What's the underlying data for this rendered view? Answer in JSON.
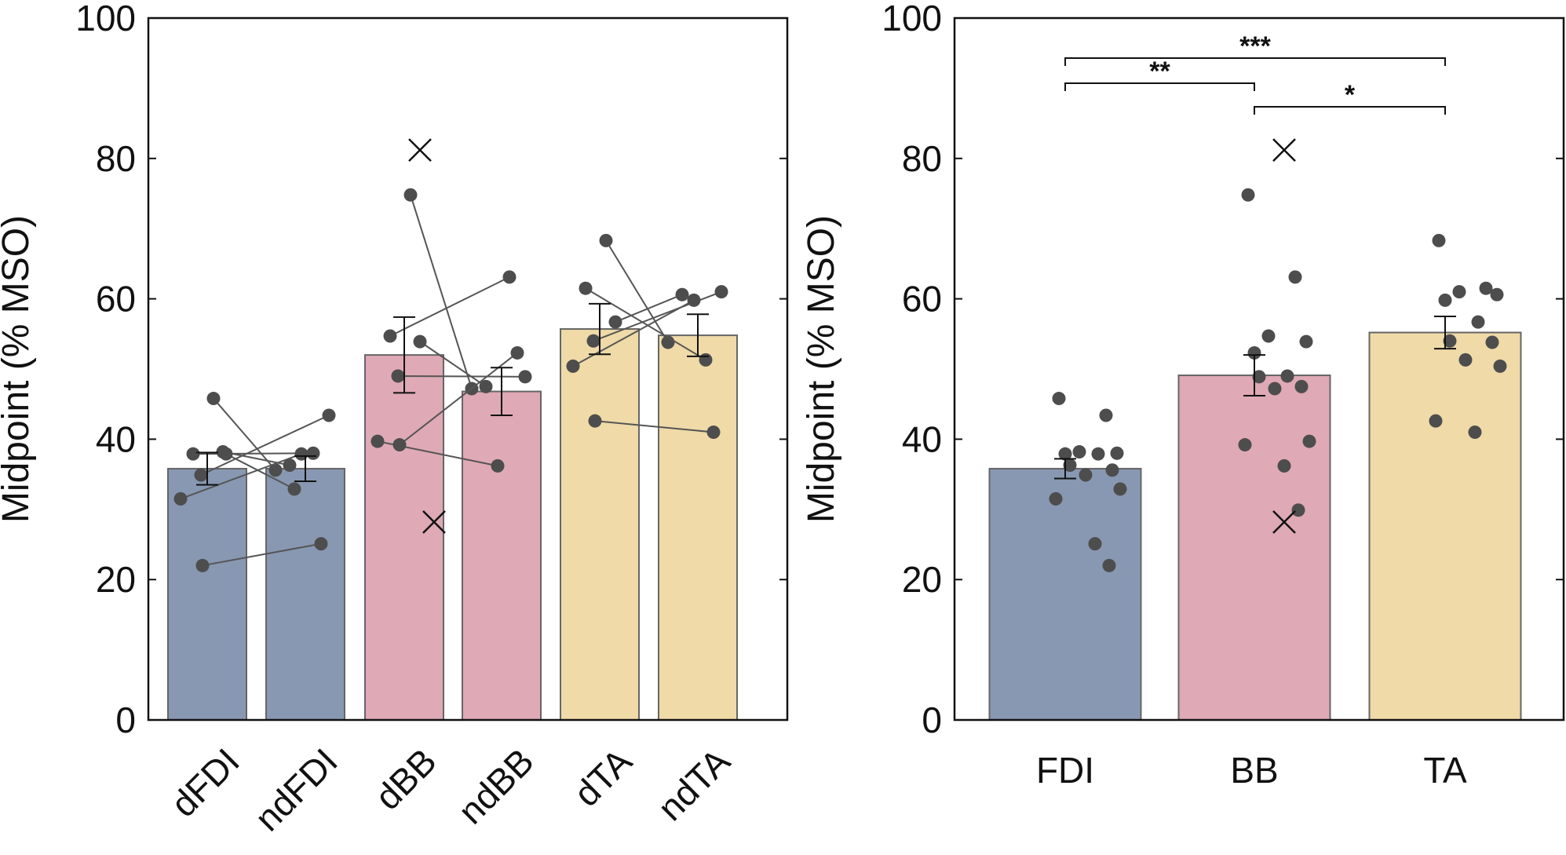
{
  "chart_data": [
    {
      "type": "bar",
      "title": "",
      "xlabel": "",
      "ylabel": "Midpoint (% MSO)",
      "ylim": [
        0,
        100
      ],
      "yticks": [
        0,
        20,
        40,
        60,
        80,
        100
      ],
      "categories": [
        "dFDI",
        "ndFDI",
        "dBB",
        "ndBB",
        "dTA",
        "ndTA"
      ],
      "values": [
        35.8,
        35.8,
        52.0,
        46.8,
        55.7,
        54.8
      ],
      "error": [
        2.3,
        1.8,
        5.4,
        3.4,
        3.6,
        3.0
      ],
      "colors": [
        "#8898b2",
        "#8898b2",
        "#dfa9b6",
        "#dfa9b6",
        "#efdaa8",
        "#efdaa8"
      ],
      "point_pairs": [
        {
          "from": 0,
          "to": 1,
          "pairs": [
            [
              45.8,
              35.6
            ],
            [
              37.9,
              38.0
            ],
            [
              38.2,
              36.3
            ],
            [
              34.9,
              43.4
            ],
            [
              31.5,
              37.9
            ],
            [
              22.0,
              25.1
            ],
            [
              37.9,
              32.9
            ]
          ]
        },
        {
          "from": 2,
          "to": 3,
          "pairs": [
            [
              74.8,
              47.2
            ],
            [
              54.7,
              63.1
            ],
            [
              53.9,
              47.5
            ],
            [
              49.0,
              48.9
            ],
            [
              39.7,
              36.2
            ],
            [
              39.2,
              52.3
            ]
          ]
        },
        {
          "from": 4,
          "to": 5,
          "pairs": [
            [
              68.3,
              53.8
            ],
            [
              61.5,
              51.3
            ],
            [
              56.7,
              60.6
            ],
            [
              54.0,
              61.0
            ],
            [
              50.4,
              59.8
            ],
            [
              42.6,
              41.0
            ]
          ]
        }
      ],
      "outliers": [
        {
          "category": "dBB",
          "value": 81.2
        },
        {
          "category": "dBB",
          "value": 28.2
        }
      ]
    },
    {
      "type": "bar",
      "title": "",
      "xlabel": "",
      "ylabel": "Midpoint (% MSO)",
      "ylim": [
        0,
        100
      ],
      "yticks": [
        0,
        20,
        40,
        60,
        80,
        100
      ],
      "categories": [
        "FDI",
        "BB",
        "TA"
      ],
      "values": [
        35.8,
        49.1,
        55.2
      ],
      "error": [
        1.4,
        2.9,
        2.3
      ],
      "colors": [
        "#8898b2",
        "#dfa9b6",
        "#efdaa8"
      ],
      "points": [
        [
          45.8,
          43.4,
          38.2,
          38.0,
          37.9,
          37.9,
          36.3,
          35.6,
          34.9,
          32.9,
          31.5,
          25.1,
          22.0
        ],
        [
          74.8,
          63.1,
          54.7,
          53.9,
          52.3,
          49.0,
          48.9,
          47.5,
          47.2,
          39.7,
          39.2,
          36.2,
          29.9
        ],
        [
          68.3,
          61.5,
          61.0,
          60.6,
          59.8,
          56.7,
          54.0,
          53.8,
          51.3,
          50.4,
          42.6,
          41.0
        ]
      ],
      "outliers": [
        {
          "category": "BB",
          "value": 81.2
        },
        {
          "category": "BB",
          "value": 28.2
        }
      ],
      "significance": [
        {
          "from": "FDI",
          "to": "TA",
          "label": "***"
        },
        {
          "from": "FDI",
          "to": "BB",
          "label": "**"
        },
        {
          "from": "BB",
          "to": "TA",
          "label": "*"
        }
      ]
    }
  ]
}
